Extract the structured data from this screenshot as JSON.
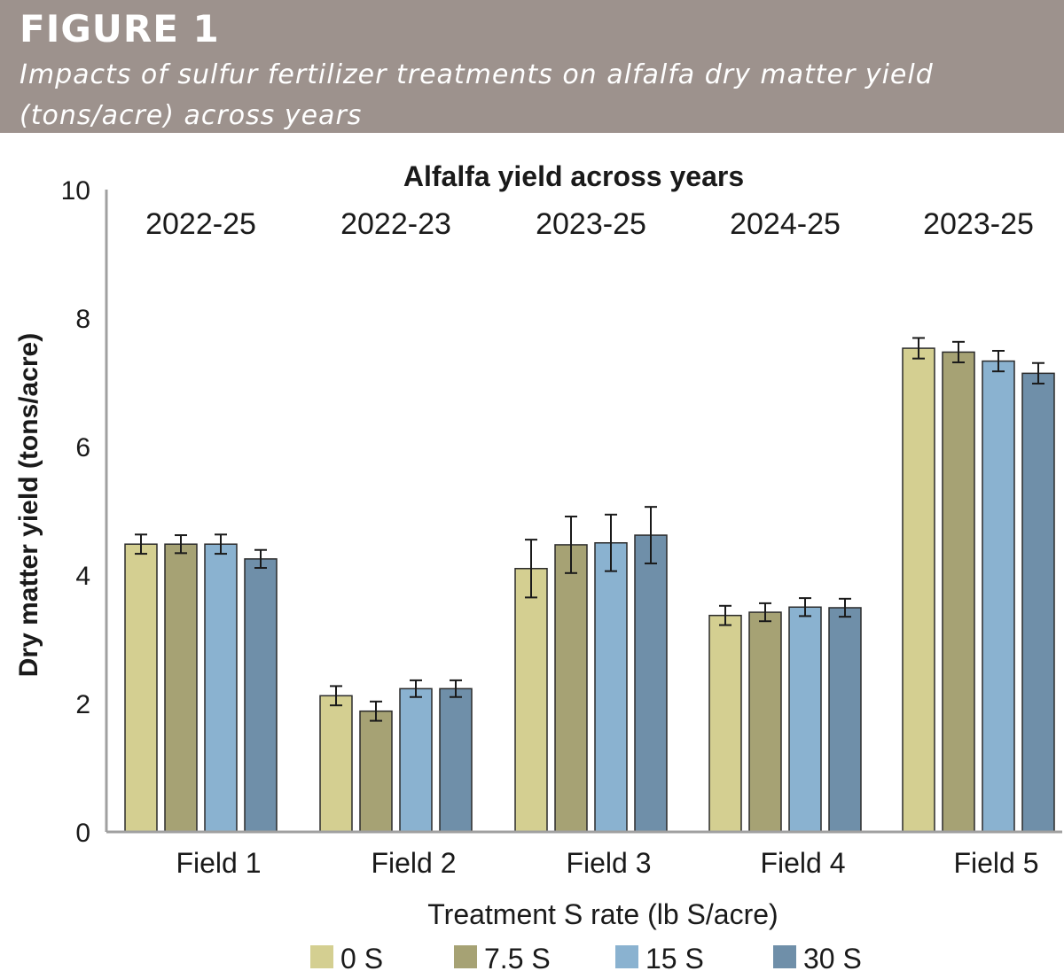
{
  "figure": {
    "label": "FIGURE 1",
    "caption_line1": "Impacts of sulfur fertilizer treatments on alfalfa dry matter yield",
    "caption_line2": "(tons/acre) across years"
  },
  "colors": {
    "banner": "#9d928d",
    "series": [
      "#d4cf91",
      "#a6a274",
      "#8ab2d0",
      "#6f8fa9"
    ],
    "axis": "#a0a0a0"
  },
  "chart_data": {
    "type": "bar",
    "title": "Alfalfa yield across years",
    "xlabel": "Treatment S rate (lb S/acre)",
    "ylabel": "Dry matter yield (tons/acre)",
    "ylim": [
      0,
      10
    ],
    "yticks": [
      "0",
      "2",
      "4",
      "6",
      "8",
      "10"
    ],
    "categories": [
      "Field 1",
      "Field 2",
      "Field 3",
      "Field 4",
      "Field 5"
    ],
    "periods": [
      "2022-25",
      "2022-23",
      "2023-25",
      "2024-25",
      "2023-25"
    ],
    "legend_position": "bottom",
    "grid": false,
    "series": [
      {
        "name": "0 S",
        "values": [
          4.48,
          2.12,
          4.1,
          3.37,
          7.53
        ],
        "errors": [
          0.15,
          0.15,
          0.45,
          0.15,
          0.16
        ]
      },
      {
        "name": "7.5 S",
        "values": [
          4.48,
          1.88,
          4.47,
          3.42,
          7.47
        ],
        "errors": [
          0.14,
          0.15,
          0.44,
          0.14,
          0.16
        ]
      },
      {
        "name": "15 S",
        "values": [
          4.48,
          2.23,
          4.5,
          3.5,
          7.33
        ],
        "errors": [
          0.15,
          0.13,
          0.44,
          0.14,
          0.16
        ]
      },
      {
        "name": "30 S",
        "values": [
          4.25,
          2.23,
          4.62,
          3.49,
          7.14
        ],
        "errors": [
          0.14,
          0.13,
          0.44,
          0.14,
          0.16
        ]
      }
    ]
  }
}
